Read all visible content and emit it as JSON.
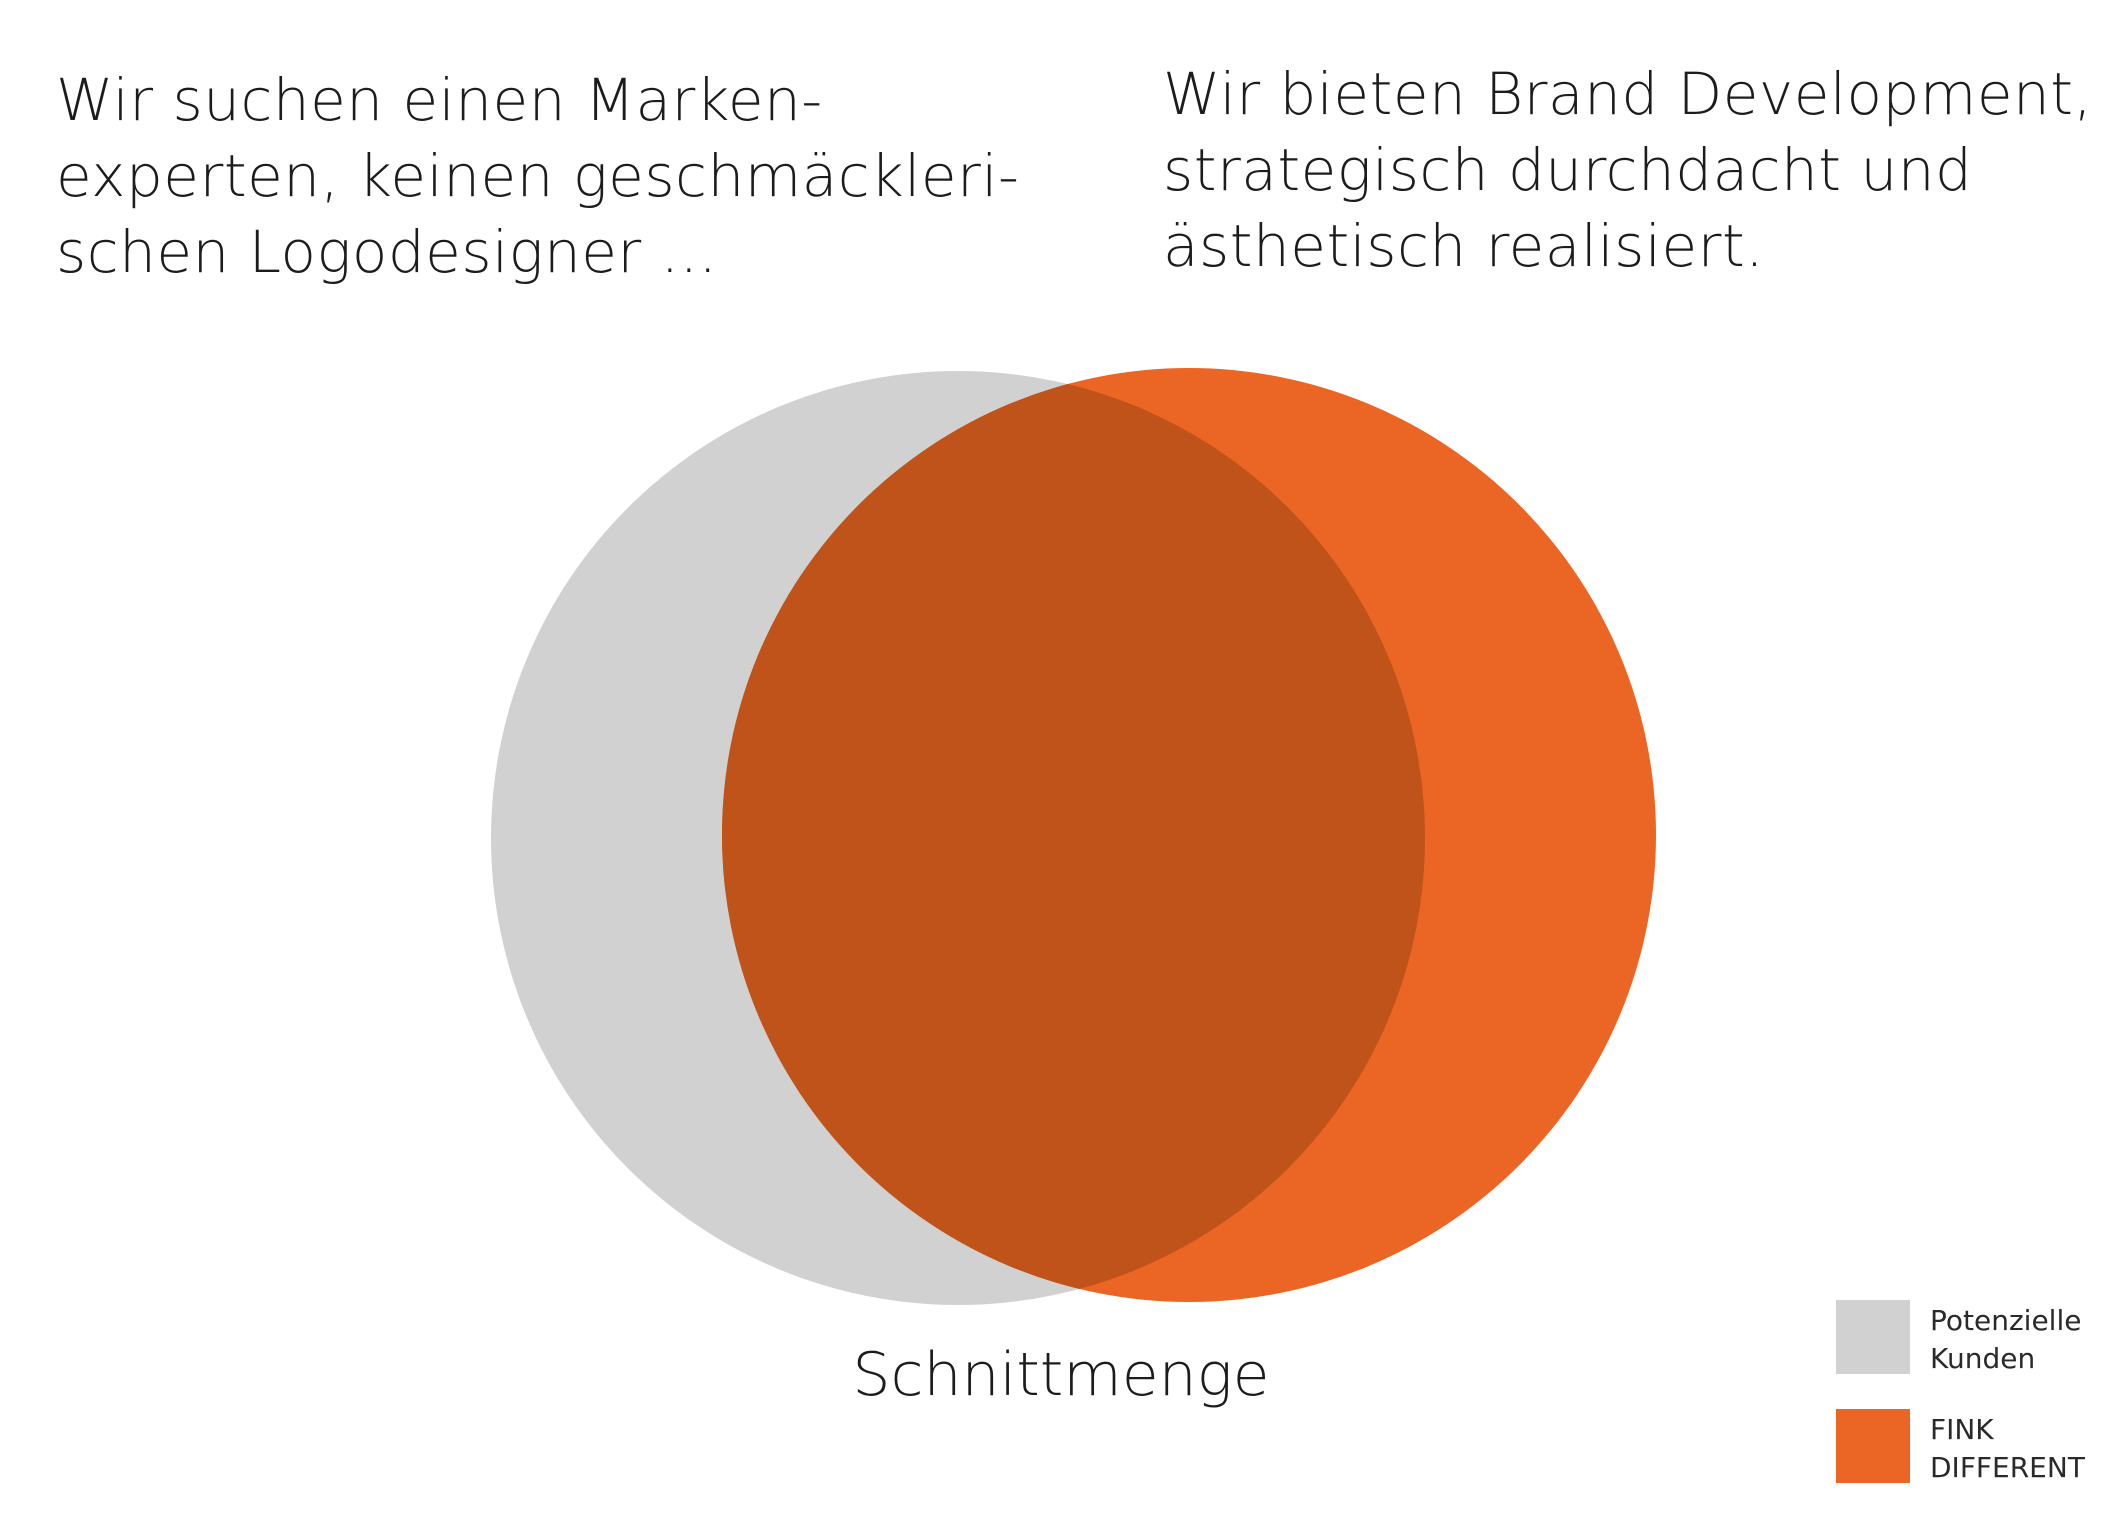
{
  "texts": {
    "left_quote_lines": [
      "Wir suchen einen Marken-",
      "experten, keinen geschmäckleri-",
      "schen Logodesigner ..."
    ],
    "right_quote_lines": [
      "Wir bieten Brand Development,",
      "strategisch durchdacht und",
      "ästhetisch realisiert."
    ],
    "intersection_label": "Schnittmenge"
  },
  "legend": [
    {
      "label_lines": [
        "Potenzielle",
        "Kunden"
      ],
      "color": "#d0d1d0"
    },
    {
      "label_lines": [
        "FINK",
        "DIFFERENT"
      ],
      "color": "#eb6525"
    }
  ],
  "colors": {
    "grey_circle": "#d0d1d0",
    "orange_circle": "#eb6525",
    "intersection": "#c0531a",
    "background": "#ffffff"
  }
}
